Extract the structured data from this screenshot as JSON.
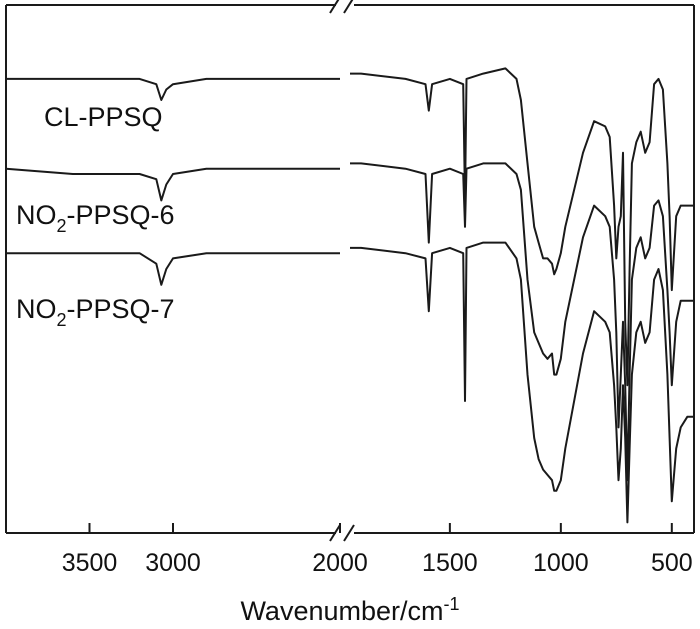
{
  "chart_data": {
    "type": "line",
    "title": "",
    "xlabel": "Wavenumber/cm",
    "xlabel_superscript": "-1",
    "ylabel": "",
    "x_axis_reversed": true,
    "x_axis_break": [
      2000,
      1950
    ],
    "xlim": [
      4000,
      400
    ],
    "x_ticks": [
      3500,
      3000,
      2000,
      1500,
      1000,
      500
    ],
    "x_tick_labels": [
      "3500",
      "3000",
      "2000",
      "1500",
      "1000",
      "500"
    ],
    "y_units": "arbitrary (stacked transmittance)",
    "ylim": [
      0,
      100
    ],
    "grid": false,
    "legend": "inline labels",
    "series": [
      {
        "name": "CL-PPSQ",
        "name_parts": [
          "CL-PPSQ"
        ],
        "x": [
          4000,
          3600,
          3200,
          3100,
          3070,
          3040,
          3000,
          2800,
          2000,
          1950,
          1900,
          1700,
          1610,
          1595,
          1580,
          1500,
          1440,
          1432,
          1425,
          1350,
          1250,
          1200,
          1180,
          1150,
          1120,
          1100,
          1080,
          1060,
          1040,
          1030,
          1020,
          1000,
          980,
          900,
          850,
          800,
          780,
          760,
          750,
          740,
          730,
          720,
          710,
          700,
          690,
          680,
          660,
          640,
          620,
          600,
          580,
          560,
          540,
          520,
          510,
          500,
          480,
          460,
          430,
          400
        ],
        "y": [
          86,
          86,
          86,
          85,
          82,
          84,
          85,
          86,
          86,
          87,
          87,
          86,
          85,
          80,
          85,
          86,
          85,
          63,
          86,
          87,
          88,
          86,
          82,
          70,
          58,
          55,
          52,
          52,
          51,
          49,
          50,
          53,
          58,
          72,
          78,
          77,
          75,
          62,
          52,
          58,
          60,
          72,
          40,
          28,
          50,
          70,
          74,
          76,
          72,
          74,
          85,
          86,
          84,
          70,
          60,
          46,
          60,
          62,
          62,
          62
        ]
      },
      {
        "name": "NO2-PPSQ-6",
        "name_parts": [
          "NO",
          "2",
          "-PPSQ-6"
        ],
        "x": [
          4000,
          3600,
          3200,
          3100,
          3070,
          3040,
          3000,
          2800,
          2000,
          1950,
          1900,
          1700,
          1610,
          1595,
          1580,
          1500,
          1440,
          1432,
          1425,
          1350,
          1250,
          1200,
          1180,
          1150,
          1120,
          1100,
          1080,
          1060,
          1040,
          1030,
          1020,
          1000,
          980,
          900,
          850,
          800,
          780,
          760,
          750,
          740,
          730,
          720,
          710,
          700,
          690,
          680,
          660,
          640,
          620,
          600,
          580,
          560,
          540,
          520,
          510,
          500,
          480,
          460,
          430,
          400
        ],
        "y": [
          69,
          68,
          68,
          67,
          63,
          66,
          68,
          69,
          69,
          70,
          70,
          69,
          68,
          55,
          68,
          69,
          68,
          58,
          69,
          70,
          70,
          68,
          65,
          48,
          38,
          36,
          34,
          33,
          34,
          30,
          30,
          33,
          40,
          56,
          62,
          60,
          58,
          48,
          38,
          20,
          30,
          40,
          28,
          10,
          30,
          48,
          54,
          56,
          52,
          54,
          62,
          63,
          60,
          46,
          38,
          28,
          40,
          44,
          44,
          44
        ]
      },
      {
        "name": "NO2-PPSQ-7",
        "name_parts": [
          "NO",
          "2",
          "-PPSQ-7"
        ],
        "x": [
          4000,
          3600,
          3200,
          3100,
          3070,
          3040,
          3000,
          2800,
          2000,
          1950,
          1900,
          1700,
          1610,
          1595,
          1580,
          1500,
          1440,
          1432,
          1425,
          1350,
          1250,
          1200,
          1180,
          1150,
          1120,
          1100,
          1080,
          1060,
          1040,
          1030,
          1020,
          1000,
          980,
          900,
          850,
          800,
          780,
          760,
          750,
          740,
          730,
          720,
          710,
          700,
          690,
          680,
          660,
          640,
          620,
          600,
          580,
          560,
          540,
          520,
          510,
          500,
          480,
          460,
          430,
          400
        ],
        "y": [
          53,
          53,
          53,
          51,
          47,
          50,
          52,
          53,
          53,
          54,
          54,
          53,
          52,
          42,
          53,
          54,
          53,
          25,
          54,
          55,
          55,
          52,
          48,
          30,
          18,
          14,
          12,
          11,
          10,
          8,
          8,
          10,
          16,
          34,
          42,
          40,
          38,
          28,
          20,
          10,
          16,
          28,
          18,
          2,
          16,
          30,
          38,
          40,
          36,
          38,
          48,
          50,
          46,
          30,
          18,
          6,
          16,
          20,
          22,
          22
        ]
      }
    ]
  }
}
